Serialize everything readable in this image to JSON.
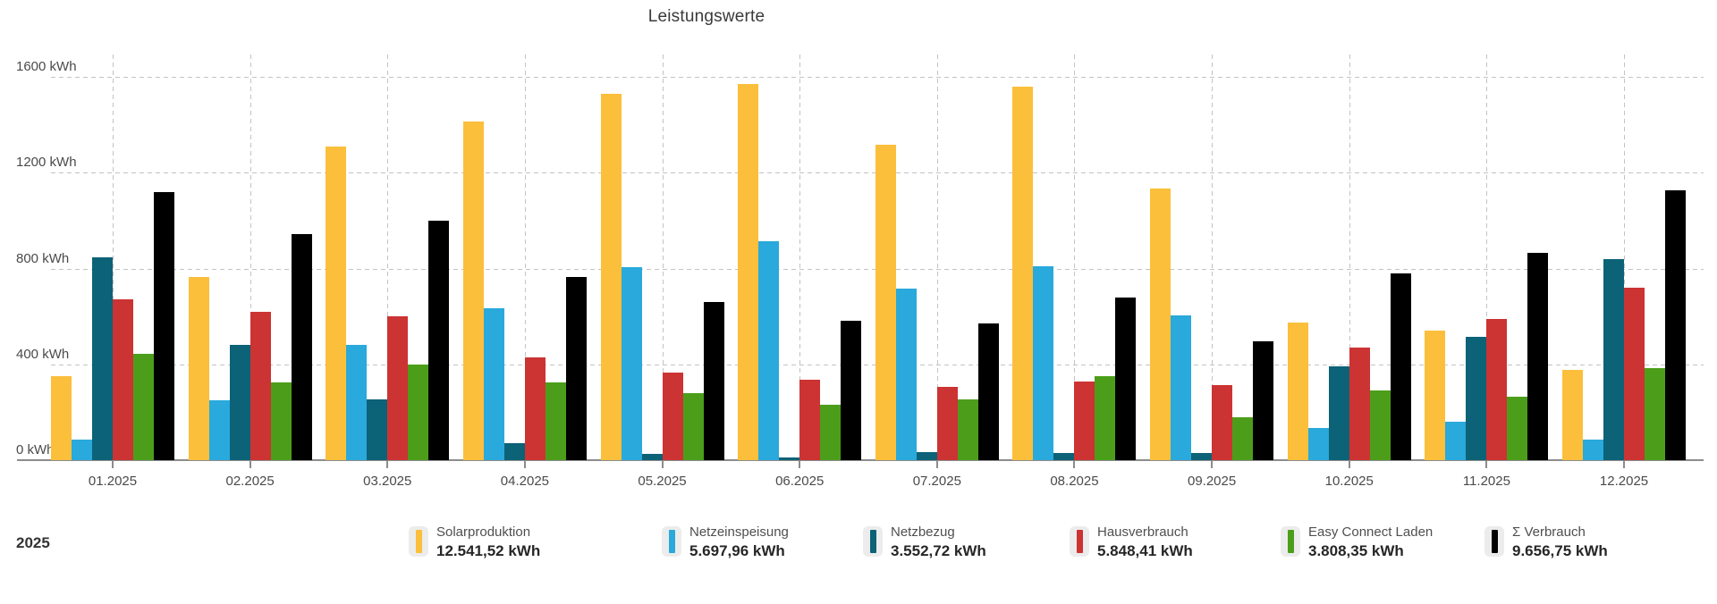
{
  "title": "Leistungswerte",
  "period_label": "2025",
  "y_axis": {
    "unit": "kWh",
    "tick_labels": [
      "0 kWh",
      "400 kWh",
      "800 kWh",
      "1200 kWh",
      "1600 kWh"
    ]
  },
  "chart_data": {
    "type": "bar",
    "title": "Leistungswerte",
    "xlabel": "",
    "ylabel": "kWh",
    "ylim": [
      0,
      1600
    ],
    "y_ticks": [
      0,
      400,
      800,
      1200,
      1600
    ],
    "grid": true,
    "legend_position": "bottom",
    "categories": [
      "01.2025",
      "02.2025",
      "03.2025",
      "04.2025",
      "05.2025",
      "06.2025",
      "07.2025",
      "08.2025",
      "09.2025",
      "10.2025",
      "11.2025",
      "12.2025"
    ],
    "series": [
      {
        "name": "Solarproduktion",
        "total_label": "12.541,52 kWh",
        "color": "#FBBF3B",
        "values": [
          350,
          765,
          1310,
          1415,
          1530,
          1570,
          1315,
          1560,
          1135,
          575,
          540,
          375
        ]
      },
      {
        "name": "Netzeinspeisung",
        "total_label": "5.697,96 kWh",
        "color": "#29A9DC",
        "values": [
          85,
          250,
          480,
          635,
          805,
          915,
          715,
          810,
          605,
          135,
          160,
          85
        ]
      },
      {
        "name": "Netzbezug",
        "total_label": "3.552,72 kWh",
        "color": "#0C6277",
        "values": [
          845,
          480,
          255,
          70,
          25,
          10,
          35,
          30,
          30,
          390,
          515,
          840
        ]
      },
      {
        "name": "Hausverbrauch",
        "total_label": "5.848,41 kWh",
        "color": "#CC3333",
        "values": [
          670,
          620,
          600,
          430,
          365,
          335,
          305,
          330,
          315,
          470,
          590,
          720
        ]
      },
      {
        "name": "Easy Connect Laden",
        "total_label": "3.808,35 kWh",
        "color": "#4C9E1A",
        "values": [
          445,
          325,
          400,
          325,
          280,
          230,
          255,
          350,
          180,
          290,
          265,
          385
        ]
      },
      {
        "name": "Σ Verbrauch",
        "total_label": "9.656,75 kWh",
        "color": "#000000",
        "values": [
          1120,
          945,
          1000,
          765,
          660,
          580,
          570,
          680,
          495,
          780,
          865,
          1125
        ]
      }
    ]
  }
}
